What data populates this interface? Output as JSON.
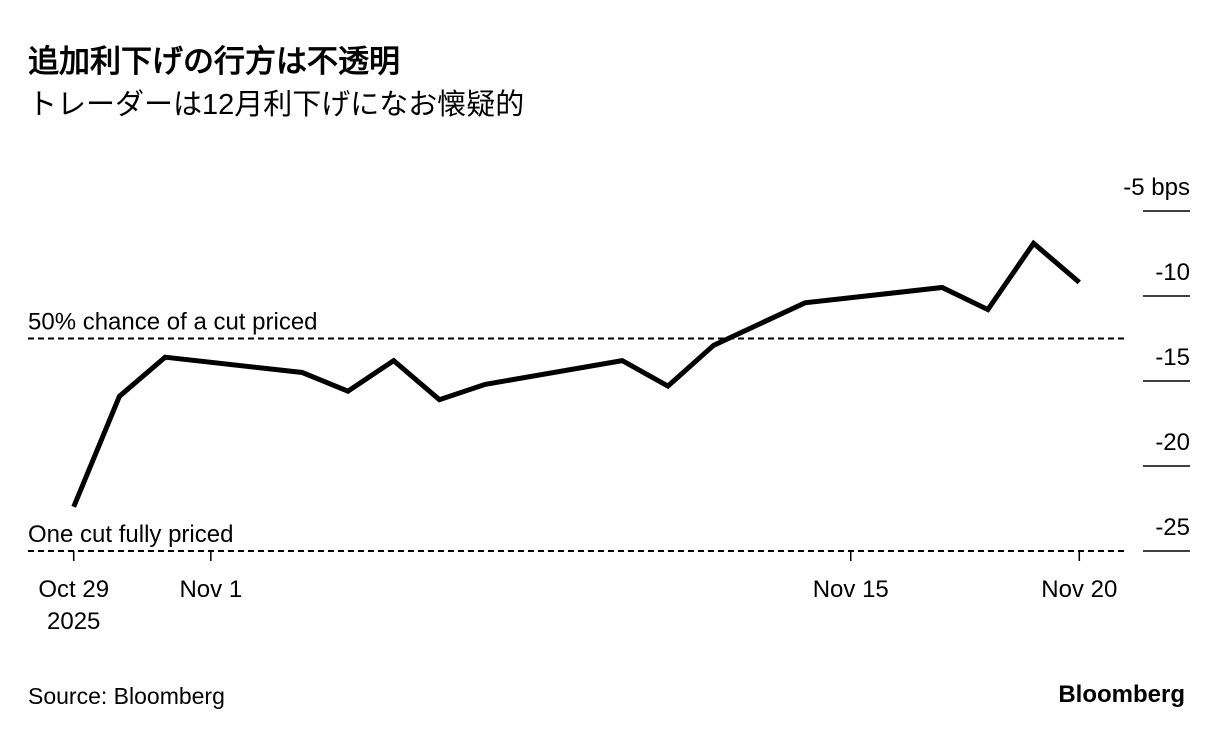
{
  "chart_data": {
    "type": "line",
    "title": "追加利下げの行方は不透明",
    "subtitle": "トレーダーは12月利下げになお懐疑的",
    "source": "Source: Bloomberg",
    "brand": "Bloomberg",
    "x": [
      "2025-10-29",
      "2025-10-30",
      "2025-10-31",
      "2025-11-03",
      "2025-11-04",
      "2025-11-05",
      "2025-11-06",
      "2025-11-07",
      "2025-11-10",
      "2025-11-11",
      "2025-11-12",
      "2025-11-14",
      "2025-11-17",
      "2025-11-18",
      "2025-11-19",
      "2025-11-20"
    ],
    "values": [
      -22.4,
      -15.9,
      -13.6,
      -14.5,
      -15.6,
      -13.8,
      -16.1,
      -15.2,
      -13.8,
      -15.3,
      -12.9,
      -10.4,
      -9.5,
      -10.8,
      -6.9,
      -9.2
    ],
    "color": "#000000",
    "xlim": [
      "2025-10-28",
      "2025-11-21"
    ],
    "xticks": [
      {
        "value": "2025-10-29",
        "label": "Oct 29\n2025"
      },
      {
        "value": "2025-11-01",
        "label": "Nov 1"
      },
      {
        "value": "2025-11-15",
        "label": "Nov 15"
      },
      {
        "value": "2025-11-20",
        "label": "Nov 20"
      }
    ],
    "ylim": [
      -25,
      -5
    ],
    "yticks": [
      {
        "value": -5,
        "label": "-5 bps"
      },
      -10,
      -15,
      -20,
      -25
    ],
    "annotations": [
      {
        "label": "50% chance of a cut priced",
        "y": -12.5
      },
      {
        "label": "One cut fully priced",
        "y": -25
      }
    ]
  }
}
